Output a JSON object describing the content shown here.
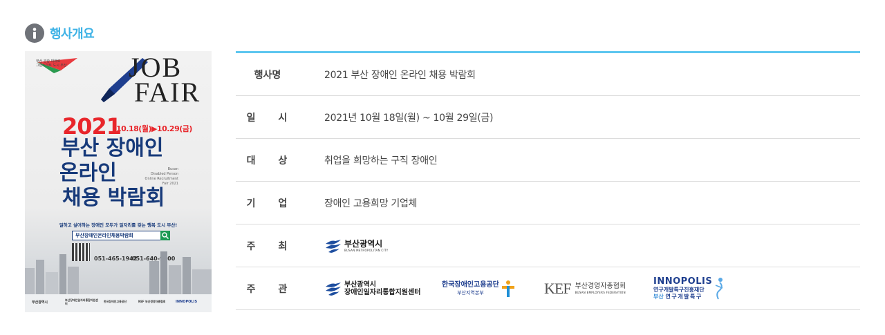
{
  "section": {
    "title": "행사개요",
    "icon": "info-icon"
  },
  "poster": {
    "corner_brand_lines": [
      "부산 관광 미래로",
      "그린스마트 도시 부산"
    ],
    "job": "JOB",
    "fair": "FAIR",
    "year": "2021",
    "dates": "10.18(월)▶10.29(금)",
    "headline_1": "부산 장애인",
    "headline_2": "온라인",
    "headline_3": "채용 박람회",
    "english_lines": [
      "Busan",
      "Disabled Person",
      "Online Recruitment",
      "Fair 2021"
    ],
    "tagline": "일하고 싶어하는 장애인 모두가 일자리를 갖는 행복 도시 부산!",
    "search_text": "부산장애인온라인채용박람회",
    "phone_1": "051-465-1942",
    "phone_2": "051-640-9800",
    "footer_logos": [
      "부산광역시",
      "부산장애인일자리통합지원센터",
      "한국장애인고용공단",
      "KEF 부산경영자총협회",
      "INNOPOLIS"
    ]
  },
  "colors": {
    "accent": "#3db2e6",
    "table_top_border": "#5cc6ef",
    "poster_red": "#e8262b",
    "poster_navy": "#173a7a"
  },
  "table": {
    "rows": [
      {
        "label": "행사명",
        "value": "2021 부산 장애인 온라인 채용 박람회"
      },
      {
        "label": "일 시",
        "value": "2021년 10월 18일(월) ~ 10월 29일(금)"
      },
      {
        "label": "대 상",
        "value": "취업을 희망하는 구직 장애인"
      },
      {
        "label": "기 업",
        "value": "장애인 고용희망 기업체"
      },
      {
        "label": "주 최",
        "value": ""
      },
      {
        "label": "주 관",
        "value": ""
      }
    ]
  },
  "host_logo": {
    "name": "부산광역시",
    "sub": "BUSAN METROPOLITAN CITY"
  },
  "organizer_logos": {
    "busan_center": {
      "line1": "부산광역시",
      "line2": "장애인일자리통합지원센터"
    },
    "kead": {
      "line1": "한국장애인고용공단",
      "line2": "부산지역본부"
    },
    "kef": {
      "mark": "KEF",
      "name": "부산경영자총협회",
      "sub": "BUSAN EMPLOYERS FEDERATION"
    },
    "innopolis": {
      "mark": "INNOPOLIS",
      "line1": "연구개발특구진흥재단",
      "line2a": "부산",
      "line2b": "연구개발특구"
    }
  }
}
